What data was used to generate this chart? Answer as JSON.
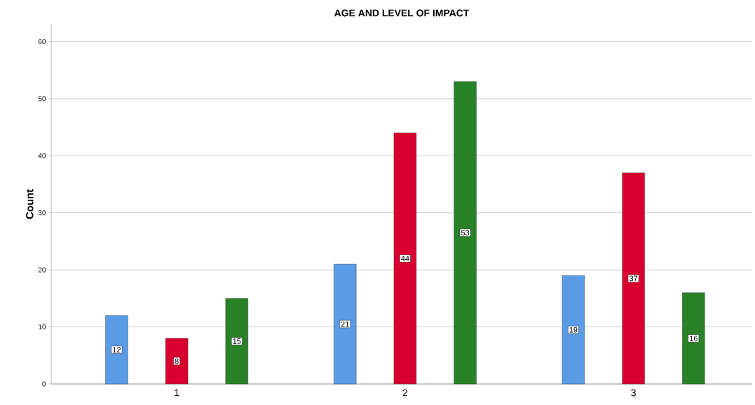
{
  "chart_data": {
    "type": "bar",
    "title": "AGE AND LEVEL OF IMPACT",
    "ylabel": "Count",
    "categories": [
      "1",
      "2",
      "3"
    ],
    "series": [
      {
        "color": "#5a9be6",
        "values": [
          12,
          21,
          19
        ]
      },
      {
        "color": "#d7002e",
        "values": [
          8,
          44,
          37
        ]
      },
      {
        "color": "#298128",
        "values": [
          15,
          53,
          16
        ]
      }
    ],
    "ylim": [
      0,
      63
    ],
    "yticks": [
      0,
      10,
      20,
      30,
      40,
      50,
      60
    ],
    "grid": "y",
    "data_labels": true
  }
}
